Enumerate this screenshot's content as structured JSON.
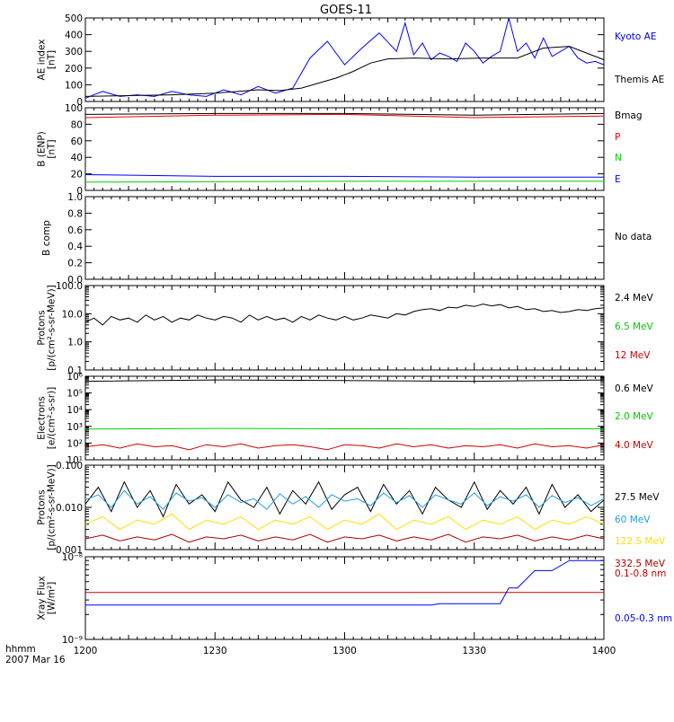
{
  "title": "GOES-11",
  "time_label": "hhmm",
  "date_label": "2007 Mar 16",
  "x_ticks": [
    "1200",
    "1230",
    "1300",
    "1330",
    "1400"
  ],
  "chart_data": [
    {
      "type": "line",
      "ylabel": [
        "AE index",
        "[nT]"
      ],
      "ylim": [
        0,
        500
      ],
      "ytick_labels": [
        "0",
        "100",
        "200",
        "300",
        "400",
        "500"
      ],
      "series": [
        {
          "name": "Kyoto AE",
          "color": "#0000ff",
          "x": [
            0,
            4,
            8,
            12,
            16,
            20,
            24,
            28,
            32,
            36,
            40,
            44,
            48,
            52,
            56,
            60,
            64,
            68,
            72,
            74,
            76,
            78,
            80,
            82,
            84,
            86,
            88,
            90,
            92,
            94,
            96,
            98,
            100,
            102,
            104,
            106,
            108,
            110,
            112,
            114,
            116,
            118,
            120
          ],
          "values": [
            20,
            60,
            30,
            40,
            30,
            60,
            40,
            30,
            70,
            40,
            90,
            50,
            80,
            260,
            360,
            220,
            320,
            410,
            300,
            470,
            280,
            350,
            250,
            290,
            270,
            240,
            350,
            300,
            230,
            270,
            300,
            500,
            300,
            350,
            260,
            380,
            270,
            300,
            330,
            260,
            230,
            240,
            220
          ]
        },
        {
          "name": "Themis AE",
          "color": "#000000",
          "x": [
            0,
            10,
            20,
            30,
            40,
            45,
            50,
            54,
            58,
            62,
            66,
            70,
            76,
            84,
            92,
            100,
            106,
            112,
            116,
            120
          ],
          "values": [
            30,
            35,
            40,
            50,
            70,
            65,
            80,
            110,
            140,
            180,
            230,
            255,
            260,
            255,
            260,
            260,
            320,
            330,
            290,
            250
          ]
        }
      ]
    },
    {
      "type": "line",
      "ylabel": [
        "B (ENP)",
        "[nT]"
      ],
      "ylim": [
        0,
        100
      ],
      "ytick_labels": [
        "0",
        "20",
        "40",
        "60",
        "80",
        "100"
      ],
      "series": [
        {
          "name": "Bmag",
          "color": "#000000",
          "x": [
            0,
            30,
            60,
            90,
            120
          ],
          "values": [
            92,
            93,
            93,
            91,
            93
          ]
        },
        {
          "name": "P",
          "color": "#ff0000",
          "x": [
            0,
            30,
            60,
            90,
            120
          ],
          "values": [
            88,
            91,
            92,
            88,
            90
          ]
        },
        {
          "name": "N",
          "color": "#00cc00",
          "x": [
            0,
            60,
            120
          ],
          "values": [
            10,
            11,
            11
          ]
        },
        {
          "name": "E",
          "color": "#0000ff",
          "x": [
            0,
            30,
            60,
            90,
            120
          ],
          "values": [
            19,
            17,
            17,
            16,
            16
          ]
        }
      ]
    },
    {
      "type": "line",
      "ylabel": [
        "B comp"
      ],
      "ylim": [
        0,
        1
      ],
      "ytick_labels": [
        "0.0",
        "0.2",
        "0.4",
        "0.6",
        "0.8",
        "1.0"
      ],
      "message": "No data",
      "series": []
    },
    {
      "type": "line",
      "ylabel": [
        "Protons",
        "[p/(cm²-s-sr-MeV)]"
      ],
      "ylim": [
        0.1,
        100
      ],
      "scale": "log",
      "ytick_labels": [
        "0.1",
        "1.0",
        "10.0",
        "100.0"
      ],
      "series": [
        {
          "name": "2.4 MeV",
          "color": "#000000",
          "x": [
            0,
            2,
            4,
            6,
            8,
            10,
            12,
            14,
            16,
            18,
            20,
            22,
            24,
            26,
            28,
            30,
            32,
            34,
            36,
            38,
            40,
            42,
            44,
            46,
            48,
            50,
            52,
            54,
            56,
            58,
            60,
            62,
            64,
            66,
            68,
            70,
            72,
            74,
            76,
            78,
            80,
            82,
            84,
            86,
            88,
            90,
            92,
            94,
            96,
            98,
            100,
            102,
            104,
            106,
            108,
            110,
            112,
            114,
            116,
            118,
            120
          ],
          "values": [
            5,
            7,
            4,
            8,
            6,
            7,
            5,
            9,
            6,
            8,
            5,
            7,
            6,
            9,
            7,
            6,
            8,
            7,
            5,
            9,
            6,
            8,
            6,
            7,
            5,
            8,
            6,
            9,
            7,
            6,
            8,
            6,
            7,
            9,
            8,
            7,
            10,
            9,
            12,
            14,
            15,
            13,
            17,
            16,
            20,
            18,
            22,
            19,
            21,
            16,
            18,
            14,
            15,
            12,
            13,
            11,
            12,
            14,
            13,
            15,
            16
          ]
        },
        {
          "name": "6.5 MeV",
          "color": "#00cc00",
          "x": [],
          "values": []
        },
        {
          "name": "12 MeV",
          "color": "#cc0000",
          "x": [],
          "values": []
        }
      ]
    },
    {
      "type": "line",
      "ylabel": [
        "Electrons",
        "[e/(cm²-s-sr)]"
      ],
      "ylim": [
        10,
        1000000
      ],
      "scale": "log",
      "ytick_labels": [
        "10¹",
        "10²",
        "10³",
        "10⁴",
        "10⁵",
        "10⁶"
      ],
      "series": [
        {
          "name": "0.6 MeV",
          "color": "#000000",
          "x": [
            0,
            30,
            60,
            90,
            120
          ],
          "values": [
            500000,
            600000,
            550000,
            500000,
            600000
          ]
        },
        {
          "name": "2.0 MeV",
          "color": "#00cc00",
          "x": [
            0,
            30,
            60,
            90,
            120
          ],
          "values": [
            700,
            750,
            720,
            700,
            720
          ]
        },
        {
          "name": "4.0 MeV",
          "color": "#cc0000",
          "x": [
            0,
            4,
            8,
            12,
            16,
            20,
            24,
            28,
            32,
            36,
            40,
            44,
            48,
            52,
            56,
            60,
            64,
            68,
            72,
            76,
            80,
            84,
            88,
            92,
            96,
            100,
            104,
            108,
            112,
            116,
            120
          ],
          "values": [
            60,
            80,
            50,
            90,
            60,
            70,
            40,
            80,
            60,
            90,
            50,
            70,
            80,
            60,
            40,
            80,
            70,
            50,
            90,
            60,
            80,
            50,
            70,
            60,
            80,
            50,
            90,
            60,
            70,
            50,
            80
          ]
        }
      ]
    },
    {
      "type": "line",
      "ylabel": [
        "Protons",
        "[p/(cm²-s-sr-MeV)]"
      ],
      "ylim": [
        0.001,
        0.1
      ],
      "scale": "log",
      "ytick_labels": [
        "0.001",
        "0.010",
        "0.100"
      ],
      "series": [
        {
          "name": "27.5 MeV",
          "color": "#000000",
          "x": [
            0,
            3,
            6,
            9,
            12,
            15,
            18,
            21,
            24,
            27,
            30,
            33,
            36,
            39,
            42,
            45,
            48,
            51,
            54,
            57,
            60,
            63,
            66,
            69,
            72,
            75,
            78,
            81,
            84,
            87,
            90,
            93,
            96,
            99,
            102,
            105,
            108,
            111,
            114,
            117,
            120
          ],
          "values": [
            0.012,
            0.03,
            0.008,
            0.04,
            0.01,
            0.025,
            0.006,
            0.035,
            0.012,
            0.02,
            0.008,
            0.04,
            0.015,
            0.01,
            0.03,
            0.007,
            0.025,
            0.012,
            0.04,
            0.009,
            0.02,
            0.03,
            0.008,
            0.035,
            0.012,
            0.025,
            0.007,
            0.03,
            0.015,
            0.01,
            0.04,
            0.009,
            0.025,
            0.012,
            0.03,
            0.007,
            0.035,
            0.01,
            0.02,
            0.008,
            0.015
          ]
        },
        {
          "name": "60 MeV",
          "color": "#1f9fe0",
          "x": [
            0,
            3,
            6,
            9,
            12,
            15,
            18,
            21,
            24,
            27,
            30,
            33,
            36,
            39,
            42,
            45,
            48,
            51,
            54,
            57,
            60,
            63,
            66,
            69,
            72,
            75,
            78,
            81,
            84,
            87,
            90,
            93,
            96,
            99,
            102,
            105,
            108,
            111,
            114,
            117,
            120
          ],
          "values": [
            0.015,
            0.02,
            0.01,
            0.025,
            0.012,
            0.018,
            0.009,
            0.022,
            0.014,
            0.017,
            0.01,
            0.02,
            0.013,
            0.016,
            0.009,
            0.021,
            0.012,
            0.018,
            0.01,
            0.02,
            0.014,
            0.016,
            0.011,
            0.022,
            0.013,
            0.019,
            0.01,
            0.02,
            0.015,
            0.012,
            0.022,
            0.011,
            0.018,
            0.014,
            0.02,
            0.01,
            0.019,
            0.013,
            0.017,
            0.011,
            0.016
          ]
        },
        {
          "name": "122.5 MeV",
          "color": "#ffdd00",
          "x": [
            0,
            4,
            8,
            12,
            16,
            20,
            24,
            28,
            32,
            36,
            40,
            44,
            48,
            52,
            56,
            60,
            64,
            68,
            72,
            76,
            80,
            84,
            88,
            92,
            96,
            100,
            104,
            108,
            112,
            116,
            120
          ],
          "values": [
            0.004,
            0.006,
            0.003,
            0.005,
            0.004,
            0.007,
            0.003,
            0.005,
            0.004,
            0.006,
            0.003,
            0.005,
            0.004,
            0.006,
            0.003,
            0.005,
            0.004,
            0.007,
            0.003,
            0.005,
            0.004,
            0.006,
            0.003,
            0.005,
            0.004,
            0.006,
            0.003,
            0.005,
            0.004,
            0.006,
            0.004
          ]
        },
        {
          "name": "332.5 MeV",
          "color": "#aa0000",
          "x": [
            0,
            4,
            8,
            12,
            16,
            20,
            24,
            28,
            32,
            36,
            40,
            44,
            48,
            52,
            56,
            60,
            64,
            68,
            72,
            76,
            80,
            84,
            88,
            92,
            96,
            100,
            104,
            108,
            112,
            116,
            120
          ],
          "values": [
            0.0018,
            0.0022,
            0.0016,
            0.002,
            0.0017,
            0.0023,
            0.0015,
            0.002,
            0.0018,
            0.0022,
            0.0016,
            0.002,
            0.0017,
            0.0023,
            0.0015,
            0.002,
            0.0018,
            0.0022,
            0.0016,
            0.002,
            0.0017,
            0.0023,
            0.0015,
            0.002,
            0.0018,
            0.0022,
            0.0016,
            0.002,
            0.0017,
            0.0022,
            0.0018
          ]
        }
      ]
    },
    {
      "type": "line",
      "ylabel": [
        "Xray Flux",
        "[W/m²]"
      ],
      "ylim": [
        1e-09,
        1e-08
      ],
      "scale": "log",
      "ytick_labels": [
        "10⁻⁹",
        "10⁻⁸"
      ],
      "series": [
        {
          "name": "0.1-0.8 nm",
          "color": "#cc0000",
          "x": [
            0,
            120
          ],
          "values": [
            3.7e-09,
            3.7e-09
          ]
        },
        {
          "name": "0.05-0.3 nm",
          "color": "#0000ff",
          "x": [
            0,
            80,
            82,
            84,
            96,
            98,
            100,
            104,
            108,
            112,
            116,
            120
          ],
          "values": [
            2.6e-09,
            2.6e-09,
            2.7e-09,
            2.7e-09,
            2.7e-09,
            4.2e-09,
            4.2e-09,
            6.8e-09,
            6.8e-09,
            9e-09,
            9e-09,
            9e-09
          ]
        }
      ]
    }
  ]
}
